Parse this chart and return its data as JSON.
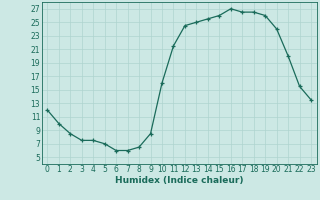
{
  "x": [
    0,
    1,
    2,
    3,
    4,
    5,
    6,
    7,
    8,
    9,
    10,
    11,
    12,
    13,
    14,
    15,
    16,
    17,
    18,
    19,
    20,
    21,
    22,
    23
  ],
  "y": [
    12,
    10,
    8.5,
    7.5,
    7.5,
    7,
    6,
    6,
    6.5,
    8.5,
    16,
    21.5,
    24.5,
    25,
    25.5,
    26,
    27,
    26.5,
    26.5,
    26,
    24,
    20,
    15.5,
    13.5
  ],
  "line_color": "#1a6b5a",
  "marker": "+",
  "bg_color": "#cce8e4",
  "grid_color": "#afd4cf",
  "xlabel": "Humidex (Indice chaleur)",
  "xlim": [
    -0.5,
    23.5
  ],
  "ylim": [
    4,
    28
  ],
  "yticks": [
    5,
    7,
    9,
    11,
    13,
    15,
    17,
    19,
    21,
    23,
    25,
    27
  ],
  "xticks": [
    0,
    1,
    2,
    3,
    4,
    5,
    6,
    7,
    8,
    9,
    10,
    11,
    12,
    13,
    14,
    15,
    16,
    17,
    18,
    19,
    20,
    21,
    22,
    23
  ],
  "label_fontsize": 6.5,
  "tick_fontsize": 5.5
}
